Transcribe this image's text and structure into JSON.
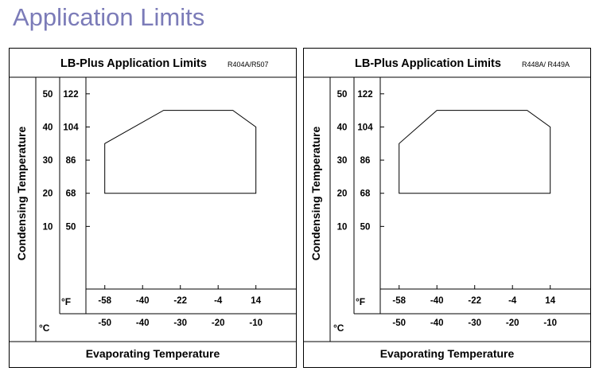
{
  "page": {
    "title": "Application Limits"
  },
  "chart_data": [
    {
      "type": "area",
      "title": "LB-Plus Application Limits",
      "subtitle": "R404A/R507",
      "xlabel": "Evaporating Temperature",
      "ylabel": "Condensing Temperature",
      "x_unit_f": "°F",
      "x_unit_c": "°C",
      "x_ticks_f": [
        "-58",
        "-40",
        "-22",
        "-4",
        "14"
      ],
      "x_ticks_c": [
        "-50",
        "-40",
        "-30",
        "-20",
        "-10"
      ],
      "y_ticks_c": [
        "50",
        "40",
        "30",
        "20",
        "10"
      ],
      "y_ticks_f": [
        "122",
        "104",
        "86",
        "68",
        "50"
      ],
      "xlim_f": [
        -67,
        27
      ],
      "ylim_f": [
        16,
        131
      ],
      "envelope_f": [
        [
          -58,
          68
        ],
        [
          -58,
          95
        ],
        [
          -30,
          113
        ],
        [
          3,
          113
        ],
        [
          14,
          104
        ],
        [
          14,
          68
        ]
      ]
    },
    {
      "type": "area",
      "title": "LB-Plus Application Limits",
      "subtitle": "R448A/ R449A",
      "xlabel": "Evaporating Temperature",
      "ylabel": "Condensing Temperature",
      "x_unit_f": "°F",
      "x_unit_c": "°C",
      "x_ticks_f": [
        "-58",
        "-40",
        "-22",
        "-4",
        "14"
      ],
      "x_ticks_c": [
        "-50",
        "-40",
        "-30",
        "-20",
        "-10"
      ],
      "y_ticks_c": [
        "50",
        "40",
        "30",
        "20",
        "10"
      ],
      "y_ticks_f": [
        "122",
        "104",
        "86",
        "68",
        "50"
      ],
      "xlim_f": [
        -67,
        27
      ],
      "ylim_f": [
        16,
        131
      ],
      "envelope_f": [
        [
          -58,
          68
        ],
        [
          -58,
          95
        ],
        [
          -40,
          113
        ],
        [
          3,
          113
        ],
        [
          14,
          104
        ],
        [
          14,
          68
        ]
      ]
    }
  ]
}
